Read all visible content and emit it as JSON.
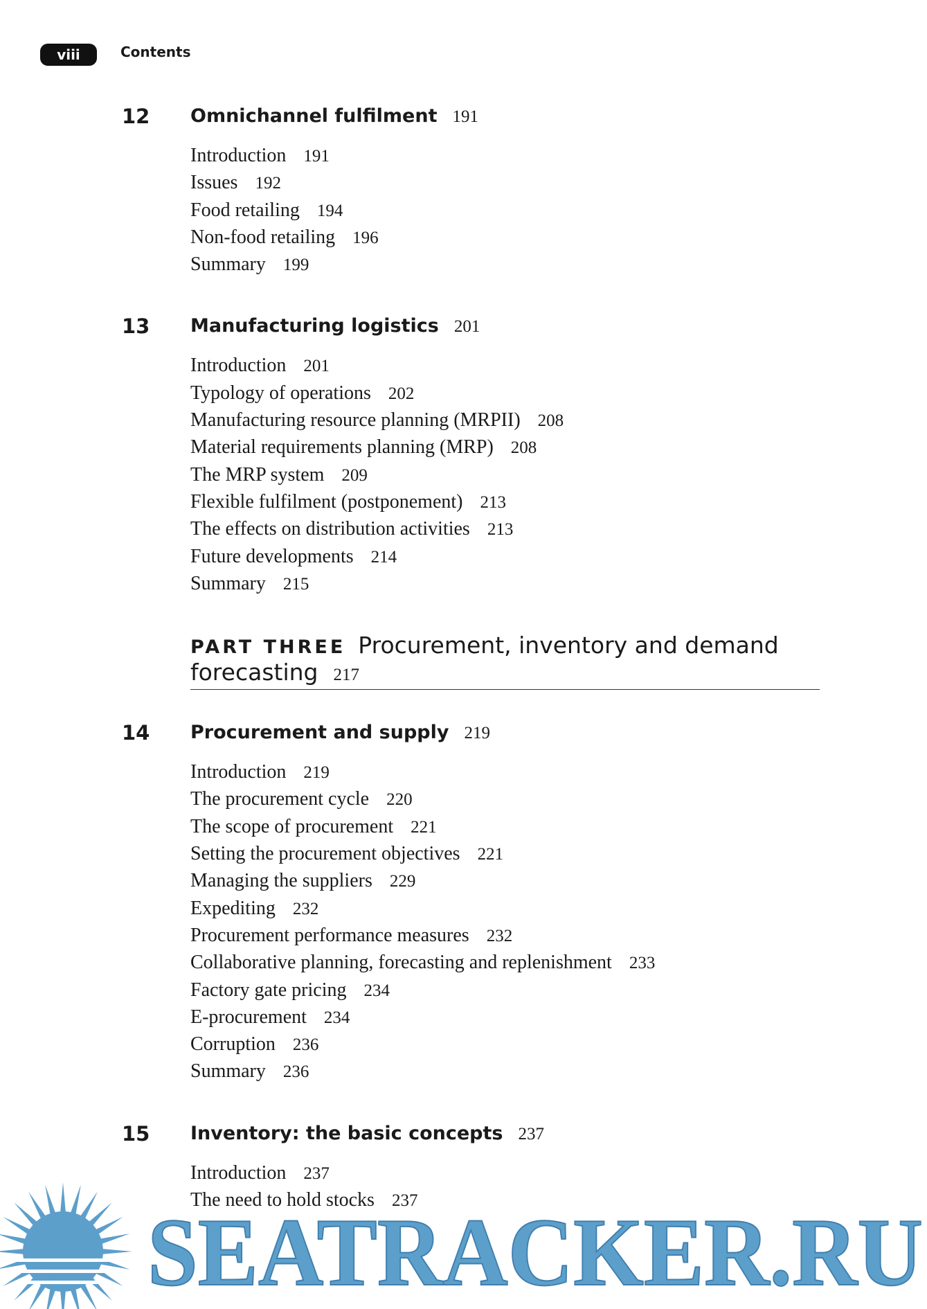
{
  "header": {
    "page_label": "viii",
    "title": "Contents"
  },
  "blocks": [
    {
      "kind": "chapter",
      "number": "12",
      "title": "Omnichannel fulfilment",
      "page": "191",
      "sections": [
        {
          "title": "Introduction",
          "page": "191"
        },
        {
          "title": "Issues",
          "page": "192"
        },
        {
          "title": "Food retailing",
          "page": "194"
        },
        {
          "title": "Non-food retailing",
          "page": "196"
        },
        {
          "title": "Summary",
          "page": "199"
        }
      ]
    },
    {
      "kind": "chapter",
      "number": "13",
      "title": "Manufacturing logistics",
      "page": "201",
      "sections": [
        {
          "title": "Introduction",
          "page": "201"
        },
        {
          "title": "Typology of operations",
          "page": "202"
        },
        {
          "title": "Manufacturing resource planning (MRPII)",
          "page": "208"
        },
        {
          "title": "Material requirements planning (MRP)",
          "page": "208"
        },
        {
          "title": "The MRP system",
          "page": "209"
        },
        {
          "title": "Flexible fulfilment (postponement)",
          "page": "213"
        },
        {
          "title": "The effects on distribution activities",
          "page": "213"
        },
        {
          "title": "Future developments",
          "page": "214"
        },
        {
          "title": "Summary",
          "page": "215"
        }
      ]
    },
    {
      "kind": "part",
      "label": "PART THREE",
      "title": "Procurement, inventory and demand forecasting",
      "page": "217"
    },
    {
      "kind": "chapter",
      "number": "14",
      "title": "Procurement and supply",
      "page": "219",
      "sections": [
        {
          "title": "Introduction",
          "page": "219"
        },
        {
          "title": "The procurement cycle",
          "page": "220"
        },
        {
          "title": "The scope of procurement",
          "page": "221"
        },
        {
          "title": "Setting the procurement objectives",
          "page": "221"
        },
        {
          "title": "Managing the suppliers",
          "page": "229"
        },
        {
          "title": "Expediting",
          "page": "232"
        },
        {
          "title": "Procurement performance measures",
          "page": "232"
        },
        {
          "title": "Collaborative planning, forecasting and replenishment",
          "page": "233"
        },
        {
          "title": "Factory gate pricing",
          "page": "234"
        },
        {
          "title": "E-procurement",
          "page": "234"
        },
        {
          "title": "Corruption",
          "page": "236"
        },
        {
          "title": "Summary",
          "page": "236"
        }
      ]
    },
    {
      "kind": "chapter",
      "number": "15",
      "title": "Inventory: the basic concepts",
      "page": "237",
      "sections": [
        {
          "title": "Introduction",
          "page": "237"
        },
        {
          "title": "The need to hold stocks",
          "page": "237"
        }
      ]
    }
  ],
  "watermark": "SEATRACKER.RU"
}
